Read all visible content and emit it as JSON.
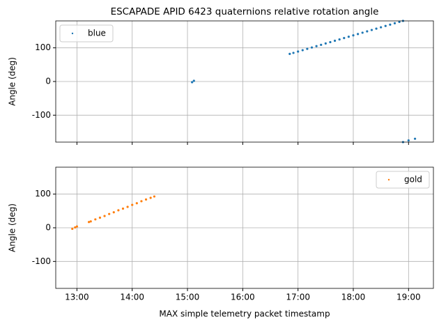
{
  "chart_data": [
    {
      "type": "scatter",
      "title": "ESCAPADE APID 6423 quaternions relative rotation angle",
      "ylabel": "Angle (deg)",
      "x": [
        "15:05",
        "15:07",
        "16:51",
        "16:55",
        "17:00",
        "17:05",
        "17:10",
        "17:15",
        "17:20",
        "17:25",
        "17:30",
        "17:35",
        "17:40",
        "17:45",
        "17:50",
        "17:55",
        "18:00",
        "18:05",
        "18:10",
        "18:15",
        "18:20",
        "18:25",
        "18:30",
        "18:35",
        "18:40",
        "18:45",
        "18:50",
        "18:54",
        "18:54",
        "19:00",
        "19:07"
      ],
      "series": [
        {
          "name": "blue",
          "color": "#1f77b4",
          "values": [
            -2,
            2,
            82,
            85,
            89,
            93,
            97,
            101,
            105,
            109,
            113,
            117,
            121,
            125,
            129,
            133,
            137,
            141,
            145,
            149,
            153,
            157,
            161,
            165,
            169,
            173,
            177,
            180,
            -180,
            -175,
            -170
          ]
        }
      ],
      "xlim": [
        "12:37",
        "19:27"
      ],
      "xticks": [
        "13:00",
        "14:00",
        "15:00",
        "16:00",
        "17:00",
        "18:00",
        "19:00"
      ],
      "ylim": [
        -180,
        180
      ],
      "yticks": [
        -100,
        0,
        100
      ],
      "grid": true,
      "legend": "upper left"
    },
    {
      "type": "scatter",
      "ylabel": "Angle (deg)",
      "xlabel": "MAX simple telemetry packet timestamp",
      "x": [
        "12:55",
        "12:58",
        "13:00",
        "13:13",
        "13:15",
        "13:20",
        "13:25",
        "13:30",
        "13:35",
        "13:40",
        "13:45",
        "13:50",
        "13:55",
        "14:00",
        "14:05",
        "14:10",
        "14:15",
        "14:20",
        "14:24"
      ],
      "series": [
        {
          "name": "gold",
          "color": "#ff7f0e",
          "values": [
            -3,
            1,
            4,
            17,
            19,
            25,
            30,
            35,
            41,
            46,
            52,
            57,
            62,
            68,
            73,
            79,
            84,
            89,
            93
          ]
        }
      ],
      "xlim": [
        "12:37",
        "19:27"
      ],
      "xticks": [
        "13:00",
        "14:00",
        "15:00",
        "16:00",
        "17:00",
        "18:00",
        "19:00"
      ],
      "ylim": [
        -180,
        180
      ],
      "yticks": [
        -100,
        0,
        100
      ],
      "grid": true,
      "legend": "upper right"
    }
  ]
}
